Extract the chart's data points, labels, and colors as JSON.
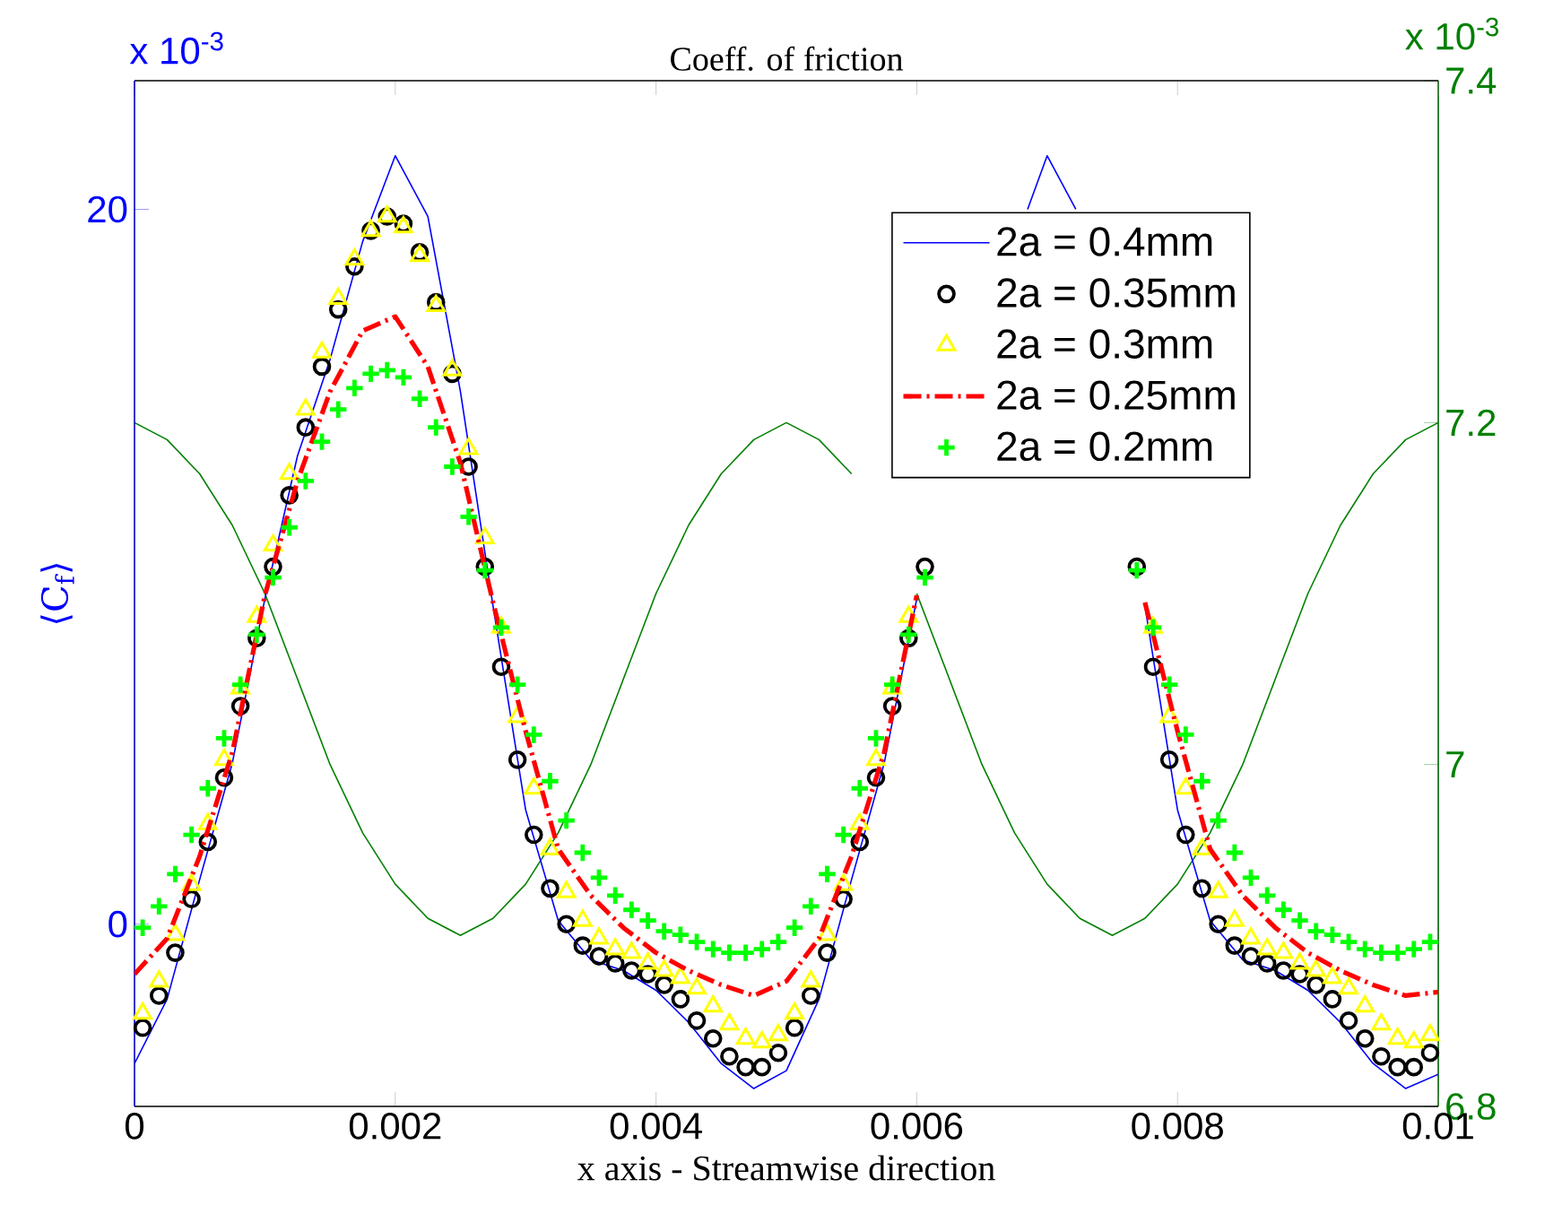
{
  "chart_data": {
    "type": "line",
    "title": "Coeff. of friction",
    "xlabel": "x axis - Streamwise direction",
    "ylabel": "⟨C$_{f}$⟩",
    "annotations": [
      "x 10$^{-3}$",
      "x 10$^{-3}$"
    ],
    "xlim": [
      0,
      0.01
    ],
    "xticks": [
      0,
      0.002,
      0.004,
      0.006,
      0.008,
      0.01
    ],
    "ylim": [
      -5.1,
      23.6
    ],
    "yticks": [
      0,
      20
    ],
    "y2lim": [
      6.8,
      7.4
    ],
    "y2ticks": [
      6.8,
      7,
      7.2,
      7.4
    ],
    "legend": "top right",
    "x": [
      6.25e-05,
      0.0001875,
      0.0003125,
      0.0004375,
      0.0005625,
      0.0006875,
      0.0008125,
      0.0009375,
      0.0010625,
      0.0011875,
      0.0013125,
      0.0014375,
      0.0015625,
      0.0016875,
      0.0018125,
      0.0019375,
      0.0020625,
      0.0021875,
      0.0023125,
      0.0024375,
      0.0025625,
      0.0026875,
      0.0028125,
      0.0029375,
      0.0030625,
      0.0031875,
      0.0033125,
      0.0034375,
      0.0035625,
      0.0036875,
      0.0038125,
      0.0039375,
      0.0040625,
      0.0041875,
      0.0043125,
      0.0044375,
      0.0045625,
      0.0046875,
      0.0048125,
      0.0049375,
      0.0050625,
      0.0051875,
      0.0053125,
      0.0054375,
      0.0055625,
      0.0056875,
      0.0058125,
      0.0059375,
      0.0060625,
      0.0061875,
      0.0063125,
      0.0064375,
      0.0065625,
      0.0066875,
      0.0068125,
      0.0069375,
      0.0070625,
      0.0071875,
      0.0073125,
      0.0074375,
      0.0075625,
      0.0076875,
      0.0078125,
      0.0079375,
      0.0080625,
      0.0081875,
      0.0083125,
      0.0084375,
      0.0085625,
      0.0086875,
      0.0088125,
      0.0089375,
      0.0090625,
      0.0091875,
      0.0093125,
      0.0094375,
      0.0095625,
      0.0096875,
      0.0098125,
      0.0099375
    ],
    "series": [
      {
        "name": "2a = 0.4mm",
        "color": "#0000ff",
        "marker": "none",
        "line_style": "solid",
        "x": [
          0,
          0.00025,
          0.0005,
          0.00075,
          0.001,
          0.00125,
          0.0015,
          0.00175,
          0.002,
          0.00225,
          0.0025,
          0.00275,
          0.003,
          0.00325,
          0.0035,
          0.00375,
          0.004,
          0.00425,
          0.0045,
          0.00475,
          0.005,
          0.00525,
          0.0055,
          0.00575,
          0.006,
          0.00625,
          0.00685,
          0.007,
          0.00722,
          0.0075,
          0.00775,
          0.008,
          0.00825,
          0.0085,
          0.00875,
          0.009,
          0.00925,
          0.0095,
          0.00975,
          0.01
        ],
        "values": [
          -3.9,
          -2.1,
          1.25,
          4.5,
          9.1,
          13.1,
          15.8,
          19.1,
          21.5,
          19.8,
          14.9,
          8.9,
          3.2,
          0.1,
          -1.0,
          -1.3,
          -1.85,
          -2.75,
          -3.9,
          -4.6,
          -4.1,
          -2.1,
          1.25,
          4.5,
          9.1,
          null,
          20.0,
          21.5,
          20.0,
          null,
          8.9,
          3.2,
          0.1,
          -1.0,
          -1.3,
          -1.85,
          -2.75,
          -3.9,
          -4.6,
          -4.2
        ]
      },
      {
        "name": "2a = 0.35mm",
        "color": "#000000",
        "type": "scatter",
        "marker": "circle",
        "values": [
          -2.9,
          -2.0,
          -0.8,
          0.7,
          2.3,
          4.1,
          6.1,
          8.0,
          10.0,
          12.0,
          13.9,
          15.6,
          17.2,
          18.4,
          19.4,
          19.8,
          19.6,
          18.8,
          17.4,
          15.4,
          12.8,
          10.0,
          7.2,
          4.6,
          2.5,
          1.0,
          0.0,
          -0.6,
          -0.9,
          -1.1,
          -1.3,
          -1.4,
          -1.7,
          -2.1,
          -2.7,
          -3.2,
          -3.7,
          -4.0,
          -4.0,
          -3.6,
          -2.9,
          -2.0,
          -0.8,
          0.7,
          2.3,
          4.1,
          6.1,
          8.0,
          10.0,
          null,
          null,
          null,
          null,
          null,
          null,
          null,
          null,
          null,
          null,
          null,
          null,
          10.0,
          7.2,
          4.6,
          2.5,
          1.0,
          0.0,
          -0.6,
          -0.9,
          -1.1,
          -1.3,
          -1.4,
          -1.7,
          -2.1,
          -2.7,
          -3.2,
          -3.7,
          -4.0,
          -4.0,
          -3.6
        ]
      },
      {
        "name": "2a = 0.3mm",
        "color": "#ffff00",
        "type": "scatter",
        "marker": "triangle",
        "values": [
          -2.5,
          -1.6,
          -0.3,
          1.1,
          2.8,
          4.6,
          6.6,
          8.6,
          10.6,
          12.6,
          14.4,
          16.0,
          17.5,
          18.6,
          19.4,
          19.8,
          19.5,
          18.7,
          17.3,
          15.5,
          13.3,
          10.8,
          8.3,
          5.8,
          3.8,
          2.1,
          0.9,
          0.1,
          -0.4,
          -0.7,
          -0.8,
          -1.1,
          -1.3,
          -1.5,
          -1.8,
          -2.3,
          -2.8,
          -3.2,
          -3.3,
          -3.1,
          -2.5,
          -1.6,
          -0.3,
          1.1,
          2.8,
          4.6,
          6.6,
          8.6,
          null,
          null,
          null,
          null,
          null,
          null,
          null,
          null,
          null,
          null,
          null,
          null,
          null,
          null,
          8.3,
          5.8,
          3.8,
          2.1,
          0.9,
          0.1,
          -0.4,
          -0.7,
          -0.8,
          -1.1,
          -1.3,
          -1.5,
          -1.8,
          -2.3,
          -2.8,
          -3.2,
          -3.3,
          -3.1
        ]
      },
      {
        "name": "2a = 0.25mm",
        "color": "#ff0000",
        "marker": "none",
        "line_style": "dashdot",
        "x": [
          0,
          0.00025,
          0.0005,
          0.00075,
          0.001,
          0.00125,
          0.0015,
          0.00175,
          0.002,
          0.00225,
          0.0025,
          0.00275,
          0.003,
          0.00325,
          0.0035,
          0.00375,
          0.004,
          0.00425,
          0.0045,
          0.00475,
          0.005,
          0.00525,
          0.0055,
          0.00575,
          0.006,
          0.00625,
          0.0065,
          0.00675,
          0.007,
          0.00725,
          0.0075,
          0.00775,
          0.008,
          0.00825,
          0.0085,
          0.00875,
          0.009,
          0.00925,
          0.0095,
          0.00975,
          0.01
        ],
        "values": [
          -1.4,
          -0.4,
          1.9,
          4.8,
          9.2,
          12.4,
          14.9,
          16.6,
          17.0,
          15.6,
          12.9,
          9.0,
          5.4,
          2.1,
          0.8,
          -0.1,
          -0.8,
          -1.3,
          -1.7,
          -2.0,
          -1.6,
          -0.4,
          1.9,
          4.8,
          9.2,
          null,
          null,
          null,
          null,
          null,
          null,
          9.0,
          5.4,
          2.1,
          0.8,
          -0.1,
          -0.8,
          -1.3,
          -1.7,
          -2.0,
          -1.9
        ]
      },
      {
        "name": "2a = 0.2mm",
        "color": "#00ff00",
        "type": "scatter",
        "marker": "cross",
        "values": [
          -0.1,
          0.5,
          1.4,
          2.5,
          3.8,
          5.2,
          6.7,
          8.1,
          9.7,
          11.1,
          12.4,
          13.5,
          14.4,
          15.0,
          15.4,
          15.5,
          15.3,
          14.7,
          13.9,
          12.8,
          11.4,
          9.9,
          8.3,
          6.7,
          5.3,
          4.0,
          2.9,
          2.0,
          1.3,
          0.8,
          0.4,
          0.1,
          -0.2,
          -0.3,
          -0.5,
          -0.7,
          -0.8,
          -0.8,
          -0.7,
          -0.5,
          -0.1,
          0.5,
          1.4,
          2.5,
          3.8,
          5.2,
          6.7,
          8.1,
          9.7,
          null,
          null,
          null,
          null,
          null,
          null,
          null,
          null,
          null,
          null,
          null,
          null,
          9.9,
          8.3,
          6.7,
          5.3,
          4.0,
          2.9,
          2.0,
          1.3,
          0.8,
          0.4,
          0.1,
          -0.2,
          -0.3,
          -0.5,
          -0.7,
          -0.8,
          -0.8,
          -0.7,
          -0.5
        ]
      },
      {
        "color": "#008000",
        "axis": "y2",
        "marker": "none",
        "line_style": "solid",
        "x": [
          0,
          0.00025,
          0.0005,
          0.00075,
          0.001,
          0.00125,
          0.0015,
          0.00175,
          0.002,
          0.00225,
          0.0025,
          0.00275,
          0.003,
          0.00325,
          0.0035,
          0.00375,
          0.004,
          0.00425,
          0.0045,
          0.00475,
          0.005,
          0.00525,
          0.0055,
          0.00575,
          0.006,
          0.00625,
          0.0065,
          0.00675,
          0.007,
          0.00725,
          0.0075,
          0.00775,
          0.008,
          0.00825,
          0.0085,
          0.00875,
          0.009,
          0.00925,
          0.0095,
          0.00975,
          0.01
        ],
        "values": [
          7.2,
          7.19,
          7.17,
          7.14,
          7.1,
          7.05,
          7.0,
          6.96,
          6.93,
          6.91,
          6.9,
          6.91,
          6.93,
          6.96,
          7.0,
          7.05,
          7.1,
          7.14,
          7.17,
          7.19,
          7.2,
          7.19,
          7.17,
          null,
          7.1,
          7.05,
          7.0,
          6.96,
          6.93,
          6.91,
          6.9,
          6.91,
          6.93,
          6.96,
          7.0,
          7.05,
          7.1,
          7.14,
          7.17,
          7.19,
          7.2
        ]
      }
    ]
  }
}
